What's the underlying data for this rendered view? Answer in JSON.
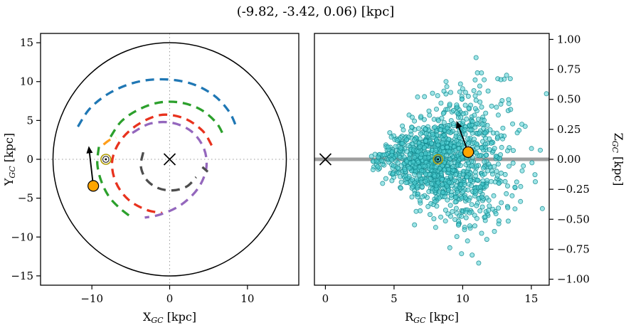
{
  "title": "(-9.82, -3.42, 0.06) [kpc]",
  "chart_data": [
    {
      "type": "line",
      "name": "galactic-plane-map",
      "xlabel": {
        "main": "X",
        "sub": "GC",
        "unit": " [kpc]"
      },
      "ylabel": {
        "main": "Y",
        "sub": "GC",
        "unit": " [kpc]"
      },
      "xlim": [
        -16.6,
        16.6
      ],
      "ylim": [
        -16.2,
        16.2
      ],
      "xticks": [
        -10,
        0,
        10
      ],
      "xtick_labels": [
        "−10",
        "0",
        "10"
      ],
      "yticks": [
        15,
        10,
        5,
        0,
        -5,
        -10,
        -15
      ],
      "ytick_labels": [
        "15",
        "10",
        "5",
        "0",
        "−5",
        "−10",
        "−15"
      ],
      "grid": "dotted-crosshair-at-zero",
      "outer_circle": {
        "r": 15,
        "color": "#000000"
      },
      "galactic_center": {
        "x": 0,
        "y": 0,
        "marker": "x",
        "color": "#000000"
      },
      "sun": {
        "x": -8.2,
        "y": 0,
        "marker": "odot",
        "ring_color": "#b09a00",
        "inner_color": "#222222"
      },
      "object": {
        "x": -9.82,
        "y": -3.42,
        "color": "#FFA500",
        "edge": "#000000"
      },
      "arrow": {
        "x1": -9.82,
        "y1": -3.42,
        "x2": -10.4,
        "y2": 1.7,
        "color": "#000000"
      },
      "spiral_arms": [
        {
          "name": "outer-blue",
          "color": "#1f77b4",
          "points": [
            [
              -11.8,
              4.2
            ],
            [
              -10.2,
              6.6
            ],
            [
              -7.6,
              8.6
            ],
            [
              -4.4,
              9.9
            ],
            [
              -1.0,
              10.3
            ],
            [
              2.6,
              9.8
            ],
            [
              5.6,
              8.3
            ],
            [
              7.6,
              6.2
            ],
            [
              8.6,
              4.1
            ]
          ]
        },
        {
          "name": "upper-green",
          "color": "#2ca02c",
          "points": [
            [
              -7.6,
              2.9
            ],
            [
              -6.2,
              4.9
            ],
            [
              -4.0,
              6.4
            ],
            [
              -1.4,
              7.3
            ],
            [
              1.4,
              7.3
            ],
            [
              4.0,
              6.4
            ],
            [
              6.0,
              4.7
            ],
            [
              7.0,
              2.9
            ]
          ]
        },
        {
          "name": "lower-green",
          "color": "#2ca02c",
          "points": [
            [
              -9.1,
              1.6
            ],
            [
              -9.3,
              -0.6
            ],
            [
              -8.8,
              -2.8
            ],
            [
              -7.8,
              -4.8
            ],
            [
              -6.4,
              -6.3
            ],
            [
              -5.0,
              -7.4
            ]
          ]
        },
        {
          "name": "red",
          "color": "#e8321e",
          "points": [
            [
              5.4,
              1.8
            ],
            [
              4.2,
              3.7
            ],
            [
              1.8,
              5.3
            ],
            [
              -1.2,
              5.7
            ],
            [
              -4.2,
              4.4
            ],
            [
              -6.4,
              2.3
            ],
            [
              -7.4,
              -0.3
            ],
            [
              -6.9,
              -3.0
            ],
            [
              -5.3,
              -5.2
            ],
            [
              -3.0,
              -6.5
            ],
            [
              -1.0,
              -6.9
            ]
          ]
        },
        {
          "name": "purple",
          "color": "#9467bd",
          "points": [
            [
              -4.8,
              3.4
            ],
            [
              -2.5,
              4.6
            ],
            [
              0.3,
              4.7
            ],
            [
              2.8,
              3.6
            ],
            [
              4.4,
              1.4
            ],
            [
              4.7,
              -1.2
            ],
            [
              3.6,
              -3.8
            ],
            [
              1.4,
              -5.9
            ],
            [
              -1.2,
              -7.1
            ],
            [
              -3.2,
              -7.5
            ]
          ]
        },
        {
          "name": "inner-gray",
          "color": "#4d4d4d",
          "points": [
            [
              -3.4,
              0.9
            ],
            [
              -3.7,
              -0.9
            ],
            [
              -3.0,
              -2.6
            ],
            [
              -1.5,
              -3.7
            ],
            [
              0.4,
              -4.0
            ],
            [
              2.2,
              -3.5
            ],
            [
              3.4,
              -2.3
            ]
          ]
        },
        {
          "name": "gray-tick",
          "color": "#4d4d4d",
          "points": [
            [
              4.2,
              -1.0
            ],
            [
              4.9,
              -1.6
            ]
          ]
        },
        {
          "name": "local-orange",
          "color": "#ff9e1b",
          "points": [
            [
              -8.5,
              1.9
            ],
            [
              -7.7,
              2.5
            ],
            [
              -6.9,
              2.8
            ]
          ]
        }
      ]
    },
    {
      "type": "scatter",
      "name": "r-z-distribution",
      "xlabel": {
        "main": "R",
        "sub": "GC",
        "unit": " [kpc]"
      },
      "ylabel": {
        "main": "Z",
        "sub": "GC",
        "unit": " [kpc]"
      },
      "xlim": [
        -0.8,
        16.3
      ],
      "ylim": [
        -1.05,
        1.05
      ],
      "xticks": [
        0,
        5,
        10,
        15
      ],
      "xtick_labels": [
        "0",
        "5",
        "10",
        "15"
      ],
      "yticks": [
        1,
        0.75,
        0.5,
        0.25,
        0,
        -0.25,
        -0.5,
        -0.75,
        -1
      ],
      "ytick_labels": [
        "1.00",
        "0.75",
        "0.50",
        "0.25",
        "0.00",
        "−0.25",
        "−0.50",
        "−0.75",
        "−1.00"
      ],
      "midplane": {
        "y": 0,
        "color": "#9e9e9e",
        "width": 5
      },
      "galactic_center": {
        "x": 0,
        "y": 0,
        "marker": "x",
        "color": "#000000"
      },
      "sun": {
        "x": 8.2,
        "y": 0,
        "marker": "odot",
        "ring_color": "#b09a00",
        "inner_color": "#222222"
      },
      "object": {
        "x": 10.4,
        "y": 0.06,
        "color": "#FFA500",
        "edge": "#000000"
      },
      "arrow": {
        "x1": 10.4,
        "y1": 0.06,
        "x2": 9.55,
        "y2": 0.32,
        "color": "#000000"
      },
      "scatter": {
        "n": 1200,
        "seed": 7,
        "r_mean": 8.7,
        "r_sigma": 2.3,
        "r_min": 3.3,
        "r_max": 16.1,
        "z_sigma_base": 0.05,
        "z_sigma_slope": 0.032,
        "z_max": 1.02,
        "fill": "#4fd0d4",
        "edge": "#13888e",
        "opacity": 0.55,
        "radius": 3.1
      }
    }
  ]
}
